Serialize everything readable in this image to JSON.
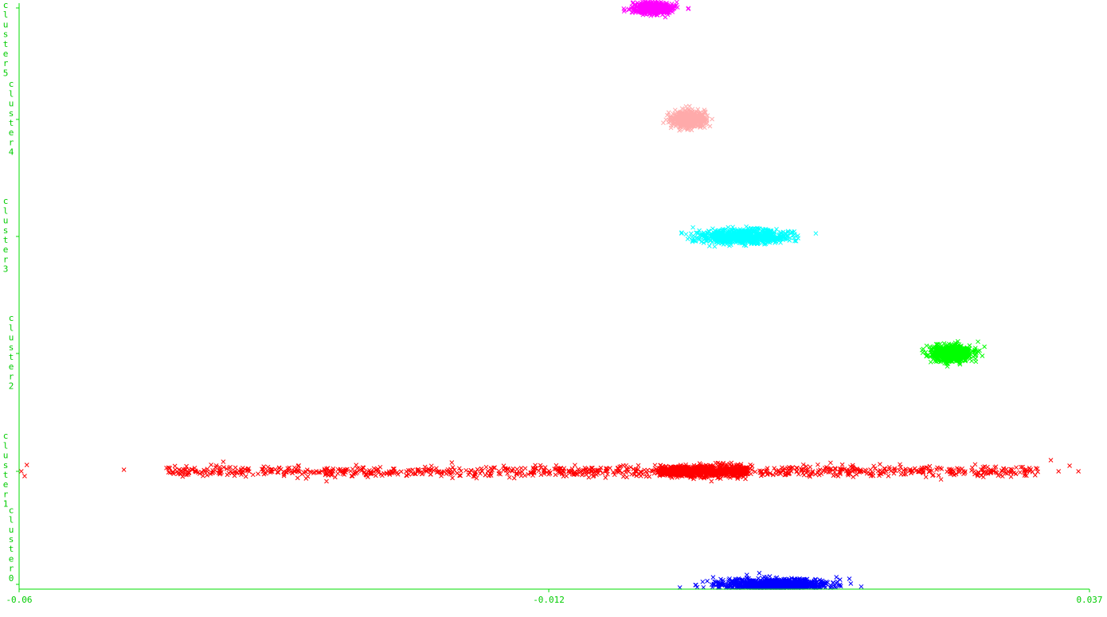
{
  "chart_data": {
    "type": "scatter",
    "title": "",
    "xlabel": "",
    "ylabel": "",
    "x_ticks": [
      "-0.06",
      "-0.012",
      "0.037"
    ],
    "xlim": [
      -0.06,
      0.037
    ],
    "y_categories": [
      "cluster0",
      "cluster1",
      "cluster2",
      "cluster3",
      "cluster4",
      "cluster5"
    ],
    "grid": false,
    "legend": "none",
    "axis_color": "#00dd00",
    "series": [
      {
        "category": "cluster0",
        "color": "#0000ff",
        "center_x": 0.0085,
        "spread_x": 0.0045,
        "x_range": [
          -0.0015,
          0.0183
        ],
        "count": 900
      },
      {
        "category": "cluster1",
        "color": "#ff0000",
        "center_x": -0.005,
        "spread_x": 0.02,
        "x_range": [
          -0.0602,
          0.0362
        ],
        "count": 1700,
        "dense_x_range": [
          -0.002,
          0.006
        ]
      },
      {
        "category": "cluster2",
        "color": "#00ff00",
        "center_x": 0.0245,
        "spread_x": 0.0017,
        "x_range": [
          0.0208,
          0.0285
        ],
        "count": 650
      },
      {
        "category": "cluster3",
        "color": "#00ffff",
        "center_x": 0.0055,
        "spread_x": 0.0036,
        "x_range": [
          -0.0035,
          0.0122
        ],
        "count": 900
      },
      {
        "category": "cluster4",
        "color": "#ffaaaa",
        "center_x": 0.0007,
        "spread_x": 0.0014,
        "x_range": [
          -0.0025,
          0.0043
        ],
        "count": 550
      },
      {
        "category": "cluster5",
        "color": "#ff00ff",
        "center_x": -0.0025,
        "spread_x": 0.0016,
        "x_range": [
          -0.0063,
          0.0014
        ],
        "count": 550
      }
    ]
  }
}
